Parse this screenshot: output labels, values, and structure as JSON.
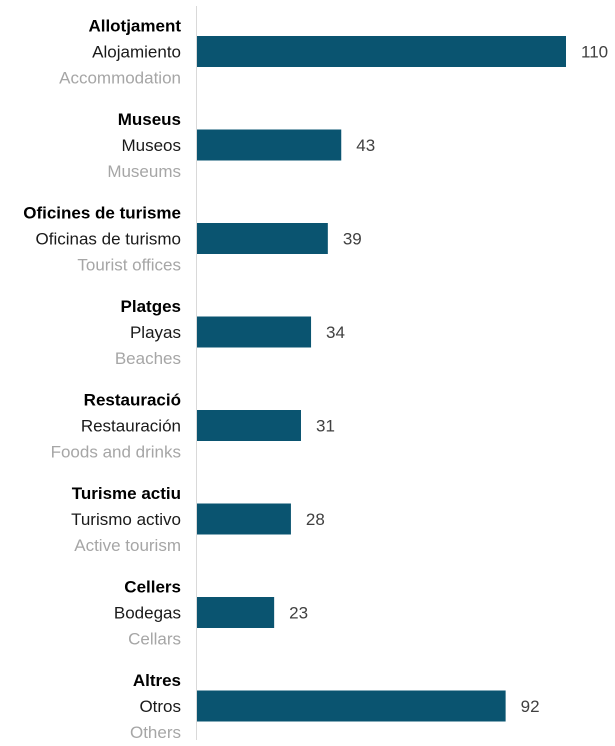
{
  "chart_data": {
    "type": "bar",
    "orientation": "horizontal",
    "bar_color": "#0a5470",
    "axis_color": "#d9d9d9",
    "label_colors": {
      "catalan": "#000000",
      "spanish": "#1a1a1a",
      "english": "#a6a6a6",
      "values": "#404040"
    },
    "categories": [
      {
        "ca": "Allotjament",
        "es": "Alojamiento",
        "en": "Accommodation"
      },
      {
        "ca": "Museus",
        "es": "Museos",
        "en": "Museums"
      },
      {
        "ca": "Oficines de turisme",
        "es": "Oficinas de turismo",
        "en": "Tourist offices"
      },
      {
        "ca": "Platges",
        "es": "Playas",
        "en": "Beaches"
      },
      {
        "ca": "Restauració",
        "es": "Restauración",
        "en": "Foods and drinks"
      },
      {
        "ca": "Turisme actiu",
        "es": "Turismo activo",
        "en": "Active tourism"
      },
      {
        "ca": "Cellers",
        "es": "Bodegas",
        "en": "Cellars"
      },
      {
        "ca": "Altres",
        "es": "Otros",
        "en": "Others"
      }
    ],
    "values": [
      110,
      43,
      39,
      34,
      31,
      28,
      23,
      92
    ],
    "xlim": [
      0,
      110
    ],
    "grid": false,
    "legend": "none"
  }
}
